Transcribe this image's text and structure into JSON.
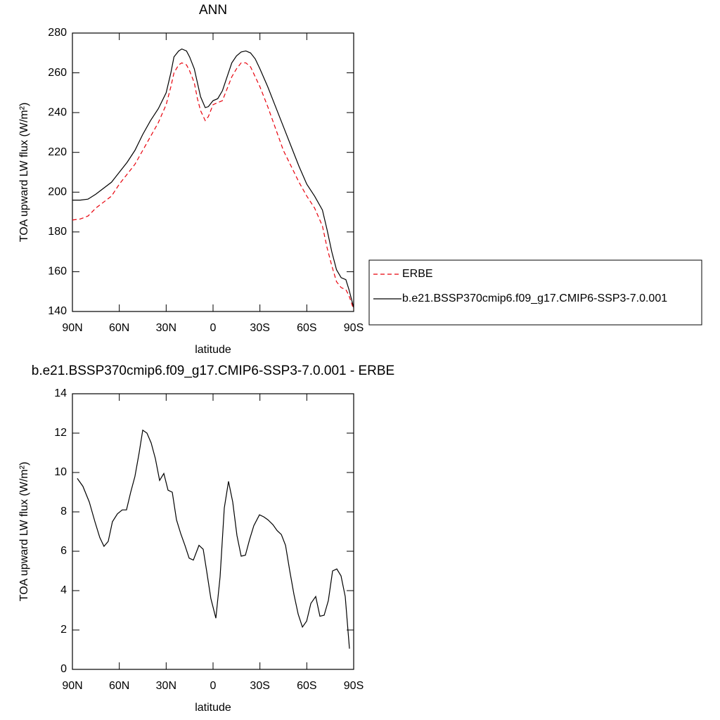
{
  "chart_data": [
    {
      "type": "line",
      "title": "ANN",
      "xlabel": "latitude",
      "ylabel": "TOA upward LW flux (W/m²)",
      "x": [
        90,
        85,
        80,
        75,
        70,
        65,
        60,
        55,
        50,
        45,
        40,
        35,
        30,
        27,
        25,
        22,
        20,
        17,
        15,
        12,
        10,
        8,
        5,
        3,
        0,
        -3,
        -6,
        -9,
        -12,
        -15,
        -18,
        -21,
        -24,
        -27,
        -30,
        -35,
        -40,
        -45,
        -50,
        -55,
        -60,
        -65,
        -70,
        -73,
        -76,
        -79,
        -82,
        -85,
        -87,
        -90
      ],
      "series": [
        {
          "name": "ERBE",
          "color": "#e8000b",
          "dash": true,
          "values": [
            186,
            186.5,
            188,
            192,
            195,
            198,
            204,
            209,
            214,
            221,
            228,
            235,
            244,
            253,
            260,
            264,
            265,
            264,
            261,
            255,
            247,
            241,
            236,
            238,
            244,
            245,
            246,
            252,
            258,
            262,
            265,
            265,
            263,
            258,
            253,
            243,
            232,
            221,
            213,
            205,
            198,
            192,
            183,
            172,
            163,
            155,
            152,
            151,
            148,
            141
          ]
        },
        {
          "name": "b.e21.BSSP370cmip6.f09_g17.CMIP6-SSP3-7.0.001",
          "color": "#000000",
          "dash": false,
          "values": [
            196,
            196,
            196.5,
            199,
            202,
            205,
            210,
            215,
            221,
            229,
            236,
            242,
            250,
            260,
            268,
            271,
            272,
            271,
            268,
            262,
            255,
            248,
            242.5,
            243,
            246,
            247,
            251,
            258,
            265,
            268.5,
            270.5,
            271,
            270,
            267,
            262,
            253,
            243,
            233,
            223,
            213,
            204,
            198,
            191,
            181,
            170,
            161,
            157,
            156,
            151,
            142
          ]
        }
      ],
      "xlim": [
        90,
        -90
      ],
      "xticks": [
        {
          "value": 90,
          "label": "90N"
        },
        {
          "value": 60,
          "label": "60N"
        },
        {
          "value": 30,
          "label": "30N"
        },
        0,
        {
          "value": -30,
          "label": "30S"
        },
        {
          "value": -60,
          "label": "60S"
        },
        {
          "value": -90,
          "label": "90S"
        }
      ],
      "ylim": [
        140,
        280
      ],
      "yticks": [
        140,
        160,
        180,
        200,
        220,
        240,
        260,
        280
      ],
      "legend": "right"
    },
    {
      "type": "line",
      "title": "b.e21.BSSP370cmip6.f09_g17.CMIP6-SSP3-7.0.001 - ERBE",
      "xlabel": "latitude",
      "ylabel": "TOA upward LW flux (W/m²)",
      "x": [
        86.9,
        83.3,
        79.2,
        75.6,
        72.5,
        69.8,
        67.1,
        64.4,
        61.2,
        58.1,
        55.4,
        52.7,
        50.0,
        47.3,
        45.0,
        42.3,
        39.6,
        36.9,
        34.2,
        31.5,
        28.8,
        26.1,
        23.4,
        20.7,
        18.0,
        15.3,
        12.6,
        9.0,
        6.3,
        4.1,
        1.4,
        -1.8,
        -4.5,
        -7.2,
        -9.9,
        -12.6,
        -15.3,
        -18.0,
        -20.7,
        -23.4,
        -26.1,
        -29.7,
        -32.4,
        -35.1,
        -38.3,
        -41.0,
        -43.7,
        -46.4,
        -49.1,
        -51.8,
        -54.5,
        -57.2,
        -59.9,
        -62.6,
        -65.7,
        -68.4,
        -71.1,
        -73.8,
        -76.5,
        -79.2,
        -81.9,
        -84.6,
        -87.3
      ],
      "color": "#000000",
      "values": [
        9.7,
        9.3,
        8.5,
        7.5,
        6.7,
        6.25,
        6.5,
        7.5,
        7.9,
        8.1,
        8.1,
        9.0,
        9.8,
        11.0,
        12.15,
        12.0,
        11.5,
        10.7,
        9.6,
        9.95,
        9.1,
        9.0,
        7.6,
        6.9,
        6.3,
        5.65,
        5.55,
        6.3,
        6.1,
        5.0,
        3.6,
        2.6,
        4.7,
        8.2,
        9.55,
        8.5,
        6.8,
        5.75,
        5.8,
        6.6,
        7.3,
        7.85,
        7.75,
        7.6,
        7.35,
        7.05,
        6.85,
        6.3,
        5.0,
        3.8,
        2.8,
        2.15,
        2.45,
        3.35,
        3.7,
        2.7,
        2.75,
        3.5,
        5.0,
        5.1,
        4.75,
        3.7,
        1.05
      ],
      "xlim": [
        90,
        -90
      ],
      "xticks": [
        {
          "value": 90,
          "label": "90N"
        },
        {
          "value": 60,
          "label": "60N"
        },
        {
          "value": 30,
          "label": "30N"
        },
        0,
        {
          "value": -30,
          "label": "30S"
        },
        {
          "value": -60,
          "label": "60S"
        },
        {
          "value": -90,
          "label": "90S"
        }
      ],
      "ylim": [
        0,
        14
      ],
      "yticks": [
        0,
        2,
        4,
        6,
        8,
        10,
        12,
        14
      ]
    }
  ]
}
